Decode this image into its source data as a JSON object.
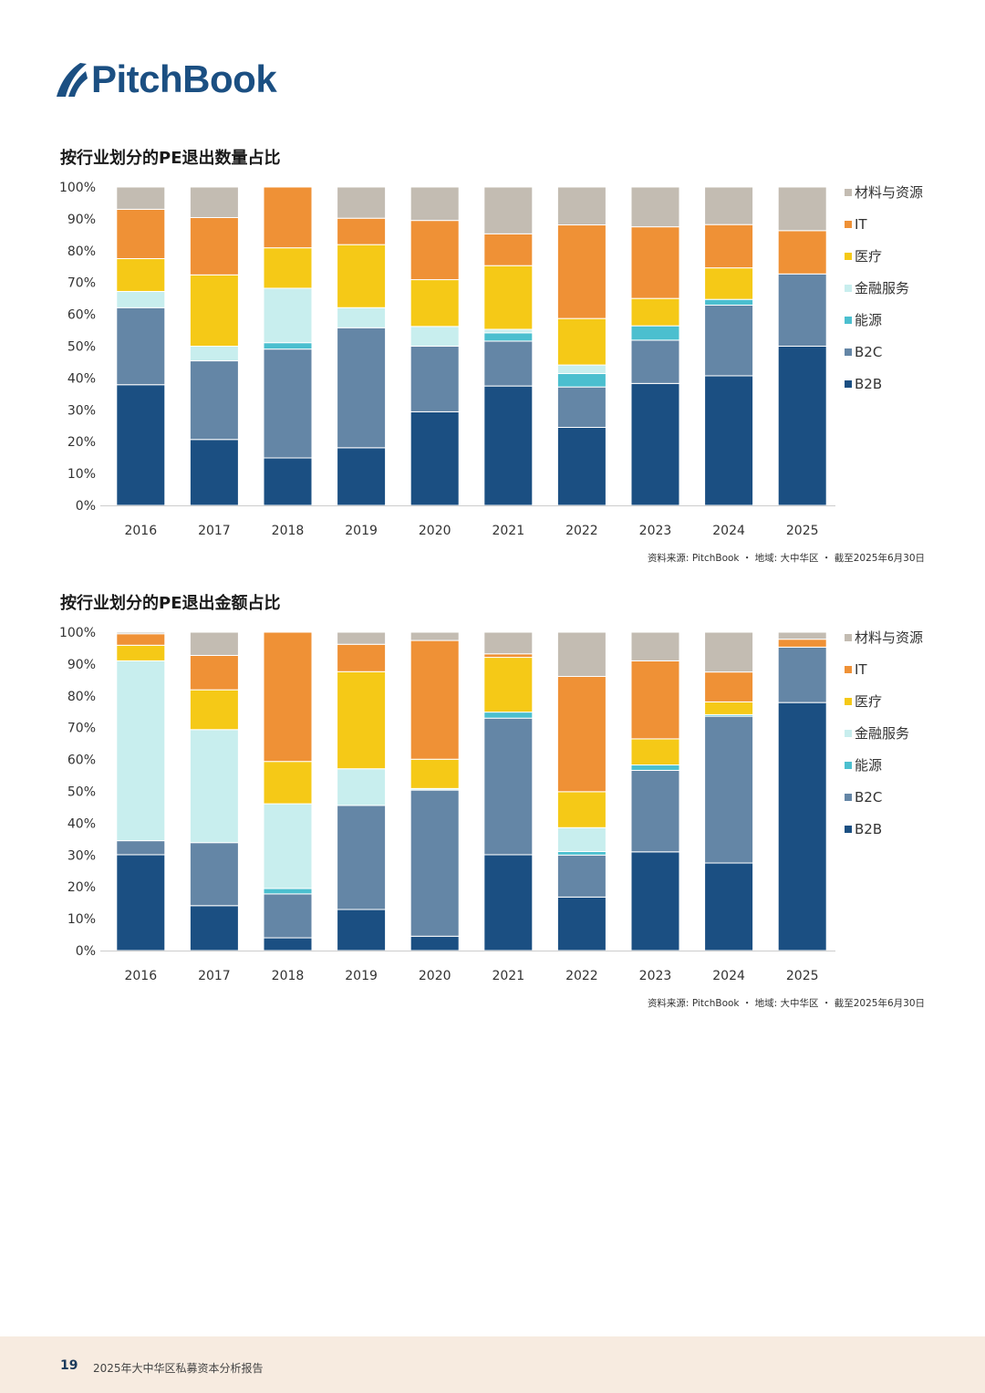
{
  "logo": {
    "text": "PitchBook"
  },
  "colors": {
    "材料与资源": "#c3bcb2",
    "IT": "#ef9136",
    "医疗": "#f5c917",
    "金融服务": "#c8eeee",
    "能源": "#4bbfcf",
    "B2C": "#6486a6",
    "B2B": "#1b4f82"
  },
  "footer": {
    "page_number": "19",
    "report_title": "2025年大中华区私募资本分析报告"
  },
  "chart_data": [
    {
      "type": "bar",
      "stacked": true,
      "title": "按行业划分的PE退出数量占比",
      "source": "资料来源: PitchBook ・ 地域: 大中华区 ・ 截至2025年6月30日",
      "categories": [
        "2016",
        "2017",
        "2018",
        "2019",
        "2020",
        "2021",
        "2022",
        "2023",
        "2024",
        "2025"
      ],
      "yticks": [
        "0%",
        "10%",
        "20%",
        "30%",
        "40%",
        "50%",
        "60%",
        "70%",
        "80%",
        "90%",
        "100%"
      ],
      "ylim": [
        0,
        100
      ],
      "legend_position": "right",
      "series": [
        {
          "name": "B2B",
          "values": [
            37.9,
            20.7,
            14.9,
            18.1,
            29.4,
            37.5,
            24.5,
            38.3,
            40.7,
            50.0
          ]
        },
        {
          "name": "B2C",
          "values": [
            24.2,
            24.7,
            34.2,
            37.7,
            20.6,
            14.1,
            12.7,
            13.6,
            22.2,
            22.7
          ]
        },
        {
          "name": "能源",
          "values": [
            0,
            0,
            2.0,
            0,
            0,
            2.6,
            4.2,
            4.5,
            1.8,
            0
          ]
        },
        {
          "name": "金融服务",
          "values": [
            5.1,
            4.6,
            17.1,
            6.3,
            6.2,
            1.1,
            2.7,
            0,
            0,
            0
          ]
        },
        {
          "name": "医疗",
          "values": [
            10.3,
            22.4,
            12.7,
            19.8,
            14.7,
            20.0,
            14.6,
            8.6,
            9.9,
            0
          ]
        },
        {
          "name": "IT",
          "values": [
            15.5,
            18.0,
            19.1,
            8.3,
            18.6,
            10.0,
            29.4,
            22.5,
            13.6,
            13.6
          ]
        },
        {
          "name": "材料与资源",
          "values": [
            7.0,
            9.6,
            0,
            9.8,
            10.5,
            14.7,
            11.9,
            12.5,
            11.8,
            13.7
          ]
        }
      ]
    },
    {
      "type": "bar",
      "stacked": true,
      "title": "按行业划分的PE退出金额占比",
      "source": "资料来源: PitchBook ・ 地域: 大中华区 ・ 截至2025年6月30日",
      "categories": [
        "2016",
        "2017",
        "2018",
        "2019",
        "2020",
        "2021",
        "2022",
        "2023",
        "2024",
        "2025"
      ],
      "yticks": [
        "0%",
        "10%",
        "20%",
        "30%",
        "40%",
        "50%",
        "60%",
        "70%",
        "80%",
        "90%",
        "100%"
      ],
      "ylim": [
        0,
        100
      ],
      "legend_position": "right",
      "series": [
        {
          "name": "B2B",
          "values": [
            30.1,
            14.1,
            4.0,
            12.9,
            4.5,
            30.1,
            16.8,
            31.0,
            27.5,
            77.9
          ]
        },
        {
          "name": "B2C",
          "values": [
            4.4,
            19.8,
            13.8,
            32.7,
            45.9,
            42.9,
            13.2,
            25.6,
            46.1,
            17.4
          ]
        },
        {
          "name": "能源",
          "values": [
            0,
            0,
            1.7,
            0,
            0,
            1.9,
            1.1,
            1.7,
            0.5,
            0
          ]
        },
        {
          "name": "金融服务",
          "values": [
            56.5,
            35.5,
            26.6,
            11.5,
            0.5,
            0,
            7.5,
            0,
            0,
            0
          ]
        },
        {
          "name": "医疗",
          "values": [
            4.9,
            12.5,
            13.3,
            30.5,
            9.2,
            17.2,
            11.3,
            8.2,
            4.0,
            0
          ]
        },
        {
          "name": "IT",
          "values": [
            3.6,
            10.8,
            40.6,
            8.6,
            37.3,
            1.1,
            36.2,
            24.5,
            9.4,
            2.5
          ]
        },
        {
          "name": "材料与资源",
          "values": [
            0.5,
            7.3,
            0,
            3.8,
            2.6,
            6.8,
            13.9,
            9.0,
            12.5,
            2.2
          ]
        }
      ]
    }
  ]
}
